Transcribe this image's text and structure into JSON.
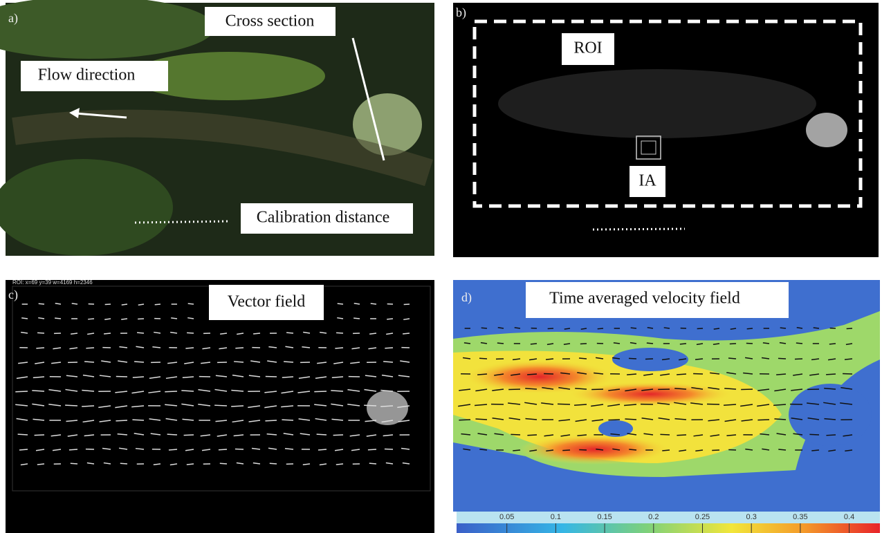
{
  "panel_a": {
    "label": "a)",
    "labels": [
      "Cross section",
      "Flow direction",
      "Calibration distance"
    ]
  },
  "panel_b": {
    "label": "b)",
    "labels": [
      "ROI",
      "IA"
    ]
  },
  "panel_c": {
    "label": "c)",
    "roi_info": "ROI: x=69 y=39 w=4169 h=2346",
    "labels": [
      "Vector field"
    ]
  },
  "panel_d": {
    "label": "d)",
    "labels": [
      "Time averaged velocity field"
    ],
    "colorbar": {
      "lim": [
        0,
        0.43
      ],
      "ticks": [
        0.05,
        0.1,
        0.15,
        0.2,
        0.25,
        0.3,
        0.35,
        0.4
      ]
    }
  }
}
